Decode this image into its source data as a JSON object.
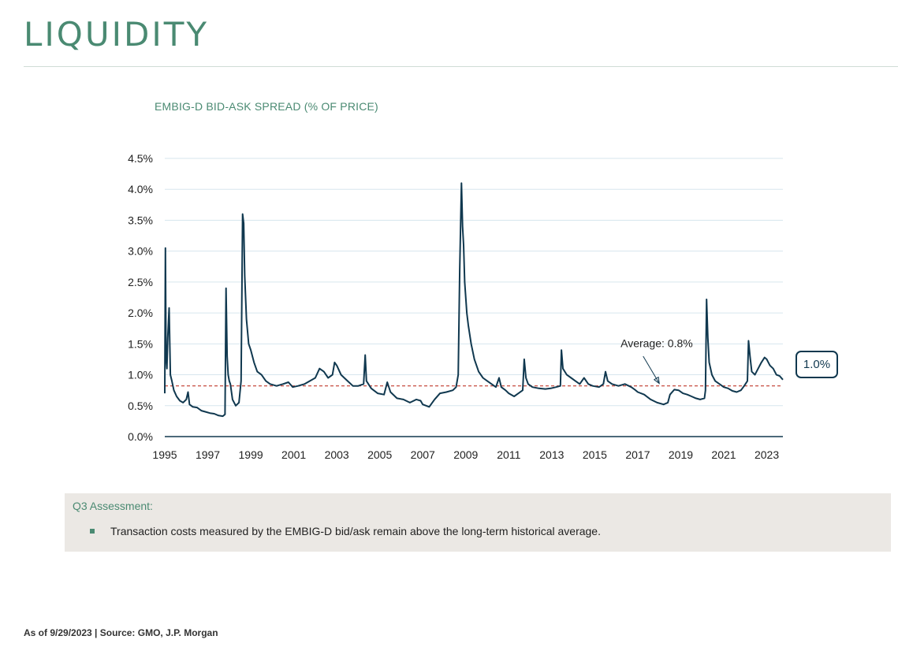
{
  "page": {
    "title": "LIQUIDITY",
    "footer": "As of 9/29/2023 | Source: GMO, J.P. Morgan"
  },
  "colors": {
    "accent_green": "#4a8a72",
    "line_navy": "#10384f",
    "average_red": "#c0392b",
    "panel_bg": "#ebe8e4"
  },
  "chart_data": {
    "type": "line",
    "title": "EMBIG-D BID-ASK SPREAD (% OF PRICE)",
    "xlabel": "",
    "ylabel": "",
    "xlim": [
      1995.0,
      2023.75
    ],
    "ylim": [
      0.0,
      4.5
    ],
    "x_ticks": [
      "1995",
      "1997",
      "1999",
      "2001",
      "2003",
      "2005",
      "2007",
      "2009",
      "2011",
      "2013",
      "2015",
      "2017",
      "2019",
      "2021",
      "2023"
    ],
    "y_ticks": [
      "0.0%",
      "0.5%",
      "1.0%",
      "1.5%",
      "2.0%",
      "2.5%",
      "3.0%",
      "3.5%",
      "4.0%",
      "4.5%"
    ],
    "grid": "horizontal",
    "average": {
      "value": 0.82,
      "label": "Average: 0.8%"
    },
    "latest_callout": "1.0%",
    "series": [
      {
        "values": [
          [
            1995.0,
            0.7
          ],
          [
            1995.03,
            3.05
          ],
          [
            1995.06,
            1.3
          ],
          [
            1995.1,
            1.1
          ],
          [
            1995.14,
            1.6
          ],
          [
            1995.2,
            2.08
          ],
          [
            1995.26,
            1.0
          ],
          [
            1995.33,
            0.9
          ],
          [
            1995.42,
            0.75
          ],
          [
            1995.55,
            0.65
          ],
          [
            1995.7,
            0.58
          ],
          [
            1995.85,
            0.55
          ],
          [
            1996.0,
            0.6
          ],
          [
            1996.08,
            0.72
          ],
          [
            1996.15,
            0.52
          ],
          [
            1996.3,
            0.48
          ],
          [
            1996.5,
            0.47
          ],
          [
            1996.7,
            0.42
          ],
          [
            1996.9,
            0.4
          ],
          [
            1997.1,
            0.38
          ],
          [
            1997.3,
            0.37
          ],
          [
            1997.5,
            0.34
          ],
          [
            1997.7,
            0.33
          ],
          [
            1997.8,
            0.36
          ],
          [
            1997.85,
            2.4
          ],
          [
            1997.9,
            1.3
          ],
          [
            1997.95,
            1.0
          ],
          [
            1998.0,
            0.9
          ],
          [
            1998.05,
            0.85
          ],
          [
            1998.15,
            0.6
          ],
          [
            1998.3,
            0.5
          ],
          [
            1998.45,
            0.55
          ],
          [
            1998.55,
            0.9
          ],
          [
            1998.62,
            3.6
          ],
          [
            1998.67,
            3.45
          ],
          [
            1998.72,
            2.6
          ],
          [
            1998.8,
            1.9
          ],
          [
            1998.9,
            1.5
          ],
          [
            1999.0,
            1.4
          ],
          [
            1999.15,
            1.2
          ],
          [
            1999.3,
            1.05
          ],
          [
            1999.5,
            1.0
          ],
          [
            1999.7,
            0.9
          ],
          [
            1999.9,
            0.85
          ],
          [
            2000.2,
            0.82
          ],
          [
            2000.5,
            0.85
          ],
          [
            2000.75,
            0.88
          ],
          [
            2000.95,
            0.8
          ],
          [
            2001.2,
            0.82
          ],
          [
            2001.5,
            0.85
          ],
          [
            2001.75,
            0.9
          ],
          [
            2002.0,
            0.95
          ],
          [
            2002.2,
            1.1
          ],
          [
            2002.4,
            1.05
          ],
          [
            2002.6,
            0.95
          ],
          [
            2002.8,
            1.0
          ],
          [
            2002.9,
            1.2
          ],
          [
            2003.0,
            1.15
          ],
          [
            2003.2,
            1.0
          ],
          [
            2003.5,
            0.9
          ],
          [
            2003.75,
            0.82
          ],
          [
            2004.0,
            0.82
          ],
          [
            2004.25,
            0.85
          ],
          [
            2004.32,
            1.32
          ],
          [
            2004.38,
            0.9
          ],
          [
            2004.6,
            0.78
          ],
          [
            2004.9,
            0.7
          ],
          [
            2005.2,
            0.68
          ],
          [
            2005.35,
            0.88
          ],
          [
            2005.5,
            0.72
          ],
          [
            2005.8,
            0.62
          ],
          [
            2006.1,
            0.6
          ],
          [
            2006.4,
            0.55
          ],
          [
            2006.7,
            0.6
          ],
          [
            2006.9,
            0.58
          ],
          [
            2007.0,
            0.52
          ],
          [
            2007.3,
            0.48
          ],
          [
            2007.55,
            0.6
          ],
          [
            2007.8,
            0.7
          ],
          [
            2008.1,
            0.72
          ],
          [
            2008.4,
            0.75
          ],
          [
            2008.55,
            0.8
          ],
          [
            2008.65,
            1.0
          ],
          [
            2008.72,
            2.7
          ],
          [
            2008.8,
            4.1
          ],
          [
            2008.85,
            3.4
          ],
          [
            2008.9,
            3.1
          ],
          [
            2008.95,
            2.5
          ],
          [
            2009.05,
            2.0
          ],
          [
            2009.12,
            1.8
          ],
          [
            2009.25,
            1.5
          ],
          [
            2009.4,
            1.25
          ],
          [
            2009.6,
            1.05
          ],
          [
            2009.8,
            0.95
          ],
          [
            2010.0,
            0.9
          ],
          [
            2010.2,
            0.85
          ],
          [
            2010.4,
            0.8
          ],
          [
            2010.55,
            0.95
          ],
          [
            2010.65,
            0.8
          ],
          [
            2010.85,
            0.75
          ],
          [
            2011.0,
            0.7
          ],
          [
            2011.25,
            0.65
          ],
          [
            2011.45,
            0.7
          ],
          [
            2011.65,
            0.75
          ],
          [
            2011.72,
            1.25
          ],
          [
            2011.8,
            0.95
          ],
          [
            2011.9,
            0.85
          ],
          [
            2012.1,
            0.8
          ],
          [
            2012.4,
            0.78
          ],
          [
            2012.7,
            0.77
          ],
          [
            2012.95,
            0.78
          ],
          [
            2013.2,
            0.8
          ],
          [
            2013.4,
            0.82
          ],
          [
            2013.45,
            1.4
          ],
          [
            2013.52,
            1.1
          ],
          [
            2013.7,
            1.0
          ],
          [
            2013.9,
            0.95
          ],
          [
            2014.1,
            0.9
          ],
          [
            2014.3,
            0.85
          ],
          [
            2014.5,
            0.95
          ],
          [
            2014.7,
            0.85
          ],
          [
            2014.9,
            0.82
          ],
          [
            2015.2,
            0.8
          ],
          [
            2015.4,
            0.85
          ],
          [
            2015.5,
            1.05
          ],
          [
            2015.6,
            0.9
          ],
          [
            2015.8,
            0.85
          ],
          [
            2016.1,
            0.82
          ],
          [
            2016.4,
            0.85
          ],
          [
            2016.7,
            0.8
          ],
          [
            2016.9,
            0.75
          ],
          [
            2017.0,
            0.72
          ],
          [
            2017.3,
            0.68
          ],
          [
            2017.6,
            0.6
          ],
          [
            2017.9,
            0.55
          ],
          [
            2018.2,
            0.52
          ],
          [
            2018.4,
            0.55
          ],
          [
            2018.5,
            0.68
          ],
          [
            2018.7,
            0.76
          ],
          [
            2018.9,
            0.75
          ],
          [
            2019.1,
            0.7
          ],
          [
            2019.3,
            0.68
          ],
          [
            2019.5,
            0.65
          ],
          [
            2019.7,
            0.62
          ],
          [
            2019.9,
            0.6
          ],
          [
            2020.1,
            0.62
          ],
          [
            2020.15,
            0.75
          ],
          [
            2020.2,
            2.22
          ],
          [
            2020.26,
            1.6
          ],
          [
            2020.32,
            1.2
          ],
          [
            2020.45,
            1.0
          ],
          [
            2020.6,
            0.9
          ],
          [
            2020.8,
            0.85
          ],
          [
            2021.0,
            0.8
          ],
          [
            2021.2,
            0.78
          ],
          [
            2021.4,
            0.74
          ],
          [
            2021.6,
            0.72
          ],
          [
            2021.8,
            0.75
          ],
          [
            2021.95,
            0.82
          ],
          [
            2022.1,
            0.9
          ],
          [
            2022.15,
            1.55
          ],
          [
            2022.22,
            1.3
          ],
          [
            2022.3,
            1.05
          ],
          [
            2022.45,
            1.0
          ],
          [
            2022.6,
            1.1
          ],
          [
            2022.75,
            1.2
          ],
          [
            2022.9,
            1.28
          ],
          [
            2023.0,
            1.25
          ],
          [
            2023.15,
            1.15
          ],
          [
            2023.3,
            1.1
          ],
          [
            2023.45,
            1.0
          ],
          [
            2023.6,
            0.98
          ],
          [
            2023.75,
            0.92
          ]
        ]
      }
    ]
  },
  "assessment": {
    "title": "Q3 Assessment:",
    "bullets": [
      "Transaction costs measured by the EMBIG-D bid/ask remain above the long-term historical average."
    ]
  }
}
